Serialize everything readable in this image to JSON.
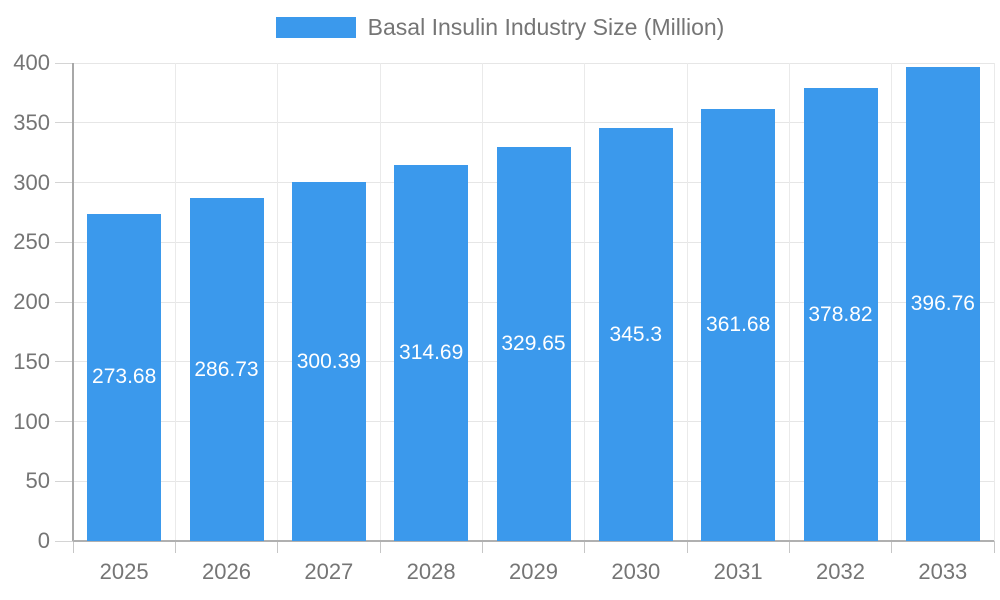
{
  "legend": {
    "label": "Basal Insulin Industry Size (Million)",
    "swatch_color": "#3b99ec"
  },
  "chart_data": {
    "type": "bar",
    "title": "Basal Insulin Industry Size (Million)",
    "categories": [
      "2025",
      "2026",
      "2027",
      "2028",
      "2029",
      "2030",
      "2031",
      "2032",
      "2033"
    ],
    "values": [
      273.68,
      286.73,
      300.39,
      314.69,
      329.65,
      345.3,
      361.68,
      378.82,
      396.76
    ],
    "value_labels": [
      "273.68",
      "286.73",
      "300.39",
      "314.69",
      "329.65",
      "345.3",
      "361.68",
      "378.82",
      "396.76"
    ],
    "y_tick_labels": [
      "0",
      "50",
      "100",
      "150",
      "200",
      "250",
      "300",
      "350",
      "400"
    ],
    "xlabel": "",
    "ylabel": "",
    "ylim": [
      0,
      400
    ],
    "ytick_step": 50,
    "grid": true,
    "legend_position": "top-center",
    "bar_color": "#3b99ec",
    "value_label_color": "#ffffff",
    "axis_text_color": "#757575"
  }
}
